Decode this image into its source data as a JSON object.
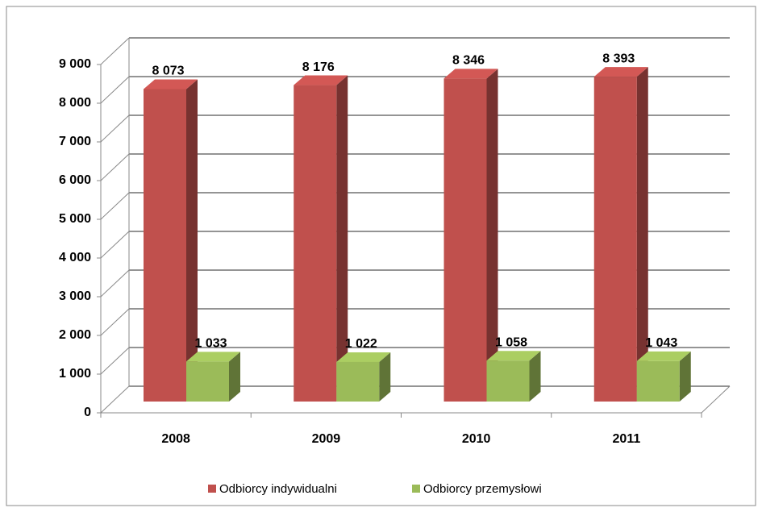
{
  "chart_data": {
    "type": "bar3d",
    "categories": [
      "2008",
      "2009",
      "2010",
      "2011"
    ],
    "series": [
      {
        "name": "Odbiorcy indywidualni",
        "color": "#c0504d",
        "values": [
          8073,
          8176,
          8346,
          8393
        ],
        "value_labels": [
          "8 073",
          "8 176",
          "8 346",
          "8 393"
        ]
      },
      {
        "name": "Odbiorcy przemysłowi",
        "color": "#9bbb59",
        "values": [
          1033,
          1022,
          1058,
          1043
        ],
        "value_labels": [
          "1 033",
          "1 022",
          "1 058",
          "1 043"
        ]
      }
    ],
    "ylim": [
      0,
      9000
    ],
    "yticks": [
      0,
      {
        "value": 1000,
        "label": "1 000"
      },
      {
        "value": 2000,
        "label": "2 000"
      },
      {
        "value": 3000,
        "label": "3 000"
      },
      {
        "value": 4000,
        "label": "4 000"
      },
      {
        "value": 5000,
        "label": "5 000"
      },
      {
        "value": 6000,
        "label": "6 000"
      },
      {
        "value": 7000,
        "label": "7 000"
      },
      {
        "value": 8000,
        "label": "8 000"
      },
      {
        "value": 9000,
        "label": "9 000"
      }
    ],
    "grid": true,
    "legend": "bottom"
  }
}
